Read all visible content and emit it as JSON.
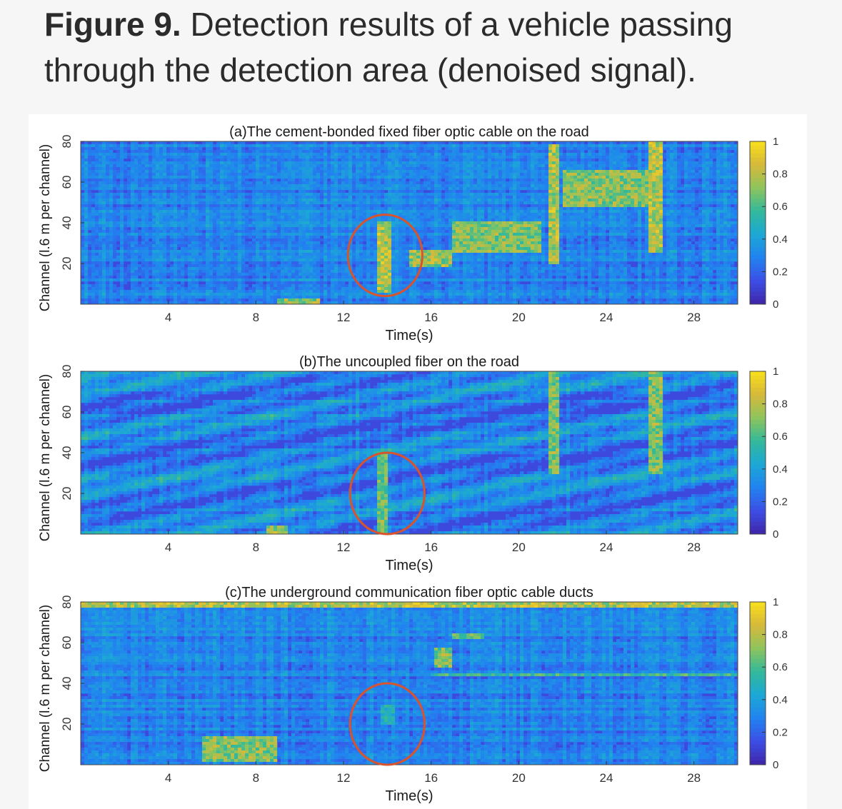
{
  "figure": {
    "label": "Figure 9.",
    "caption": "Detection results of a vehicle passing through the detection area (denoised signal)."
  },
  "colormap": {
    "name": "parula",
    "stops": [
      "#3e26a8",
      "#3d4ee6",
      "#2183f0",
      "#1ca8d5",
      "#33b99a",
      "#8ec45c",
      "#d6b93a",
      "#f9e01b"
    ]
  },
  "highlight_color": "#d9532c",
  "chart_data": [
    {
      "type": "heatmap",
      "title": "(a)The cement-bonded fixed fiber optic cable on the road",
      "xlabel": "Time(s)",
      "ylabel": "Channel (l.6 m per channel)",
      "xticks": [
        "4",
        "8",
        "12",
        "16",
        "20",
        "24",
        "28"
      ],
      "yticks": [
        "20",
        "40",
        "60",
        "80"
      ],
      "xlim": [
        0,
        30
      ],
      "ylim": [
        0,
        80
      ],
      "colorbar": {
        "min": 0,
        "max": 1,
        "ticks": [
          "1",
          "0.8",
          "0.6",
          "0.4",
          "0.2",
          "0"
        ]
      },
      "events": [
        {
          "t": [
            13.5,
            14.2
          ],
          "ch": [
            5,
            40
          ],
          "v": 0.95
        },
        {
          "t": [
            15.0,
            17.0
          ],
          "ch": [
            18,
            26
          ],
          "v": 0.9
        },
        {
          "t": [
            17.0,
            21.0
          ],
          "ch": [
            25,
            40
          ],
          "v": 0.85
        },
        {
          "t": [
            21.3,
            21.9
          ],
          "ch": [
            20,
            78
          ],
          "v": 0.95
        },
        {
          "t": [
            22.0,
            26.0
          ],
          "ch": [
            48,
            66
          ],
          "v": 0.85
        },
        {
          "t": [
            26.0,
            26.6
          ],
          "ch": [
            25,
            80
          ],
          "v": 0.95
        },
        {
          "t": [
            9.0,
            11.0
          ],
          "ch": [
            0,
            3
          ],
          "v": 0.9
        }
      ],
      "annotation": {
        "shape": "ellipse",
        "t_center": 13.9,
        "ch_center": 24,
        "t_radius": 1.7,
        "ch_radius": 20
      }
    },
    {
      "type": "heatmap",
      "title": "(b)The uncoupled fiber on the road",
      "xlabel": "Time(s)",
      "ylabel": "Channel (l.6 m per channel)",
      "xticks": [
        "4",
        "8",
        "12",
        "16",
        "20",
        "24",
        "28"
      ],
      "yticks": [
        "20",
        "40",
        "60",
        "80"
      ],
      "xlim": [
        0,
        30
      ],
      "ylim": [
        0,
        80
      ],
      "colorbar": {
        "min": 0,
        "max": 1,
        "ticks": [
          "1",
          "0.8",
          "0.6",
          "0.4",
          "0.2",
          "0"
        ]
      },
      "events": [
        {
          "t": [
            13.6,
            14.1
          ],
          "ch": [
            0,
            40
          ],
          "v": 0.8
        },
        {
          "t": [
            21.3,
            21.9
          ],
          "ch": [
            30,
            80
          ],
          "v": 0.85
        },
        {
          "t": [
            26.0,
            26.6
          ],
          "ch": [
            30,
            80
          ],
          "v": 0.85
        },
        {
          "t": [
            8.5,
            9.5
          ],
          "ch": [
            0,
            4
          ],
          "v": 0.9
        }
      ],
      "annotation": {
        "shape": "ellipse",
        "t_center": 14.0,
        "ch_center": 20,
        "t_radius": 1.7,
        "ch_radius": 20
      }
    },
    {
      "type": "heatmap",
      "title": "(c)The underground communication fiber optic cable ducts",
      "xlabel": "Time(s)",
      "ylabel": "Channel (l.6 m per channel)",
      "xticks": [
        "4",
        "8",
        "12",
        "16",
        "20",
        "24",
        "28"
      ],
      "yticks": [
        "20",
        "40",
        "60",
        "80"
      ],
      "xlim": [
        0,
        30
      ],
      "ylim": [
        0,
        80
      ],
      "colorbar": {
        "min": 0,
        "max": 1,
        "ticks": [
          "1",
          "0.8",
          "0.6",
          "0.4",
          "0.2",
          "0"
        ]
      },
      "events": [
        {
          "t": [
            0,
            30
          ],
          "ch": [
            77,
            80
          ],
          "v": 0.95
        },
        {
          "t": [
            16.0,
            30.0
          ],
          "ch": [
            43,
            45
          ],
          "v": 0.7
        },
        {
          "t": [
            16.2,
            17.0
          ],
          "ch": [
            48,
            58
          ],
          "v": 0.85
        },
        {
          "t": [
            17.0,
            18.5
          ],
          "ch": [
            62,
            65
          ],
          "v": 0.8
        },
        {
          "t": [
            13.7,
            14.3
          ],
          "ch": [
            20,
            30
          ],
          "v": 0.6
        },
        {
          "t": [
            5.5,
            9.0
          ],
          "ch": [
            2,
            14
          ],
          "v": 0.85
        },
        {
          "t": [
            0,
            30
          ],
          "ch": [
            4,
            6
          ],
          "v": 0.3
        }
      ],
      "annotation": {
        "shape": "ellipse",
        "t_center": 14.0,
        "ch_center": 20,
        "t_radius": 1.7,
        "ch_radius": 20
      }
    }
  ]
}
